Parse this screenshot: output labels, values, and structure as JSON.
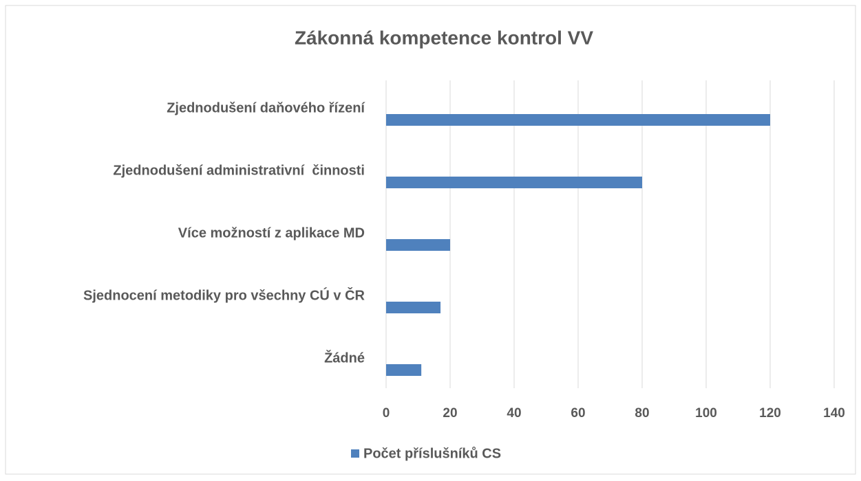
{
  "chart_data": {
    "type": "bar",
    "orientation": "horizontal",
    "title": "Zákonná kompetence kontrol VV",
    "categories": [
      "Zjednodušení daňového řízení",
      "Zjednodušení administrativní  činnosti",
      "Více možností z aplikace MD",
      "Sjednocení metodiky pro všechny CÚ v ČR",
      "Žádné"
    ],
    "series": [
      {
        "name": "Počet příslušníků CS",
        "color": "#4f81bd",
        "values": [
          120,
          80,
          20,
          17,
          11
        ]
      }
    ],
    "xlim": [
      0,
      140
    ],
    "xticks": [
      0,
      20,
      40,
      60,
      80,
      100,
      120,
      140
    ],
    "grid": true,
    "legend": "bottom"
  }
}
